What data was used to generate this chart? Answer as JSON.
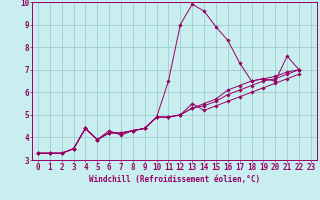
{
  "xlabel": "Windchill (Refroidissement éolien,°C)",
  "xlim": [
    -0.5,
    23.5
  ],
  "ylim": [
    3,
    10
  ],
  "xticks": [
    0,
    1,
    2,
    3,
    4,
    5,
    6,
    7,
    8,
    9,
    10,
    11,
    12,
    13,
    14,
    15,
    16,
    17,
    18,
    19,
    20,
    21,
    22,
    23
  ],
  "yticks": [
    3,
    4,
    5,
    6,
    7,
    8,
    9,
    10
  ],
  "background_color": "#c8eef0",
  "grid_color": "#a0ccd0",
  "line_color": "#990066",
  "series": [
    [
      3.3,
      3.3,
      3.3,
      3.5,
      4.4,
      3.9,
      4.3,
      4.1,
      4.3,
      4.4,
      4.9,
      6.5,
      9.0,
      9.9,
      9.6,
      8.9,
      8.3,
      7.3,
      6.5,
      6.6,
      6.5,
      7.6,
      7.0
    ],
    [
      3.3,
      3.3,
      3.3,
      3.5,
      4.4,
      3.9,
      4.2,
      4.2,
      4.3,
      4.4,
      4.9,
      4.9,
      5.0,
      5.5,
      5.2,
      5.4,
      5.6,
      5.8,
      6.0,
      6.2,
      6.4,
      6.6,
      6.8
    ],
    [
      3.3,
      3.3,
      3.3,
      3.5,
      4.4,
      3.9,
      4.2,
      4.2,
      4.3,
      4.4,
      4.9,
      4.9,
      5.0,
      5.3,
      5.4,
      5.6,
      5.9,
      6.1,
      6.3,
      6.5,
      6.6,
      6.8,
      7.0
    ],
    [
      3.3,
      3.3,
      3.3,
      3.5,
      4.4,
      3.9,
      4.2,
      4.2,
      4.3,
      4.4,
      4.9,
      4.9,
      5.0,
      5.3,
      5.5,
      5.7,
      6.1,
      6.3,
      6.5,
      6.6,
      6.7,
      6.9,
      7.0
    ]
  ],
  "tick_fontsize": 5.5,
  "xlabel_fontsize": 5.5
}
